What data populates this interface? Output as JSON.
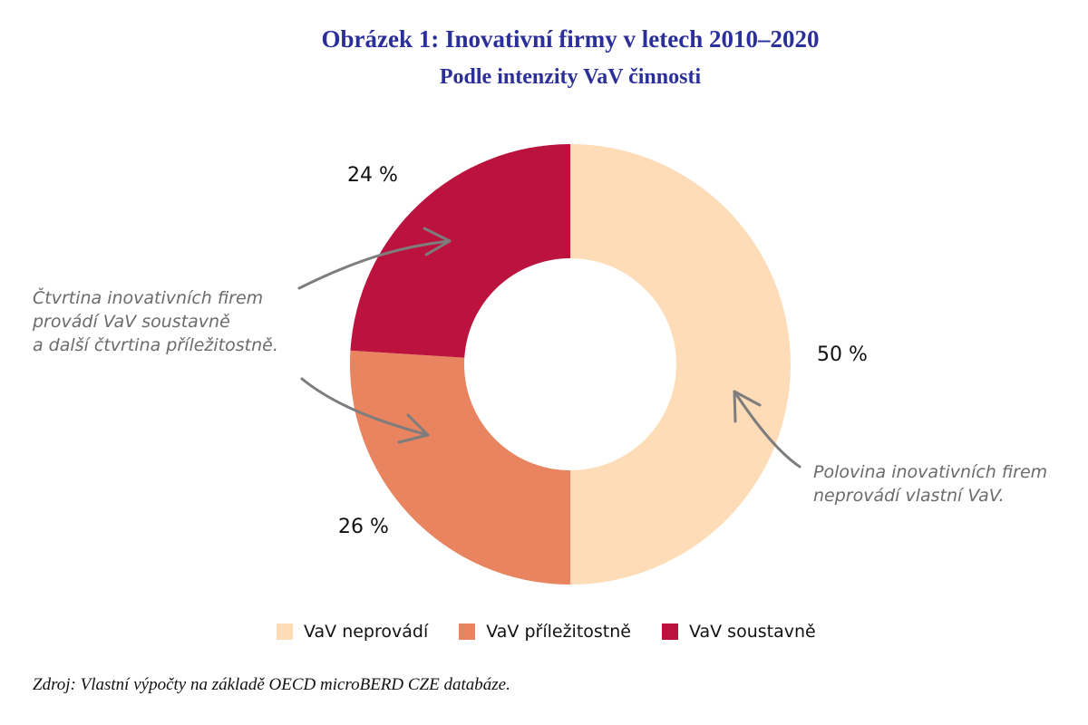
{
  "title": "Obrázek 1: Inovativní firmy v letech 2010–2020",
  "subtitle": "Podle intenzity VaV činnosti",
  "chart_data": {
    "type": "pie",
    "variant": "donut",
    "start_angle_deg": 0,
    "direction": "clockwise",
    "slices": [
      {
        "label": "VaV neprovádí",
        "value": 50,
        "value_label": "50 %",
        "color": "#fddcb7"
      },
      {
        "label": "VaV příležitostně",
        "value": 26,
        "value_label": "26 %",
        "color": "#e88460"
      },
      {
        "label": "VaV soustavně",
        "value": 24,
        "value_label": "24 %",
        "color": "#bb133e"
      }
    ],
    "legend_position": "bottom"
  },
  "annotations": {
    "left_lines": [
      "Čtvrtina inovativních firem",
      "provádí VaV soustavně",
      "a další čtvrtina příležitostně."
    ],
    "right_lines": [
      "Polovina inovativních firem",
      "neprovádí vlastní VaV."
    ],
    "arrow_color": "#7d7d7d"
  },
  "source": "Zdroj: Vlastní výpočty na základě OECD microBERD CZE databáze."
}
